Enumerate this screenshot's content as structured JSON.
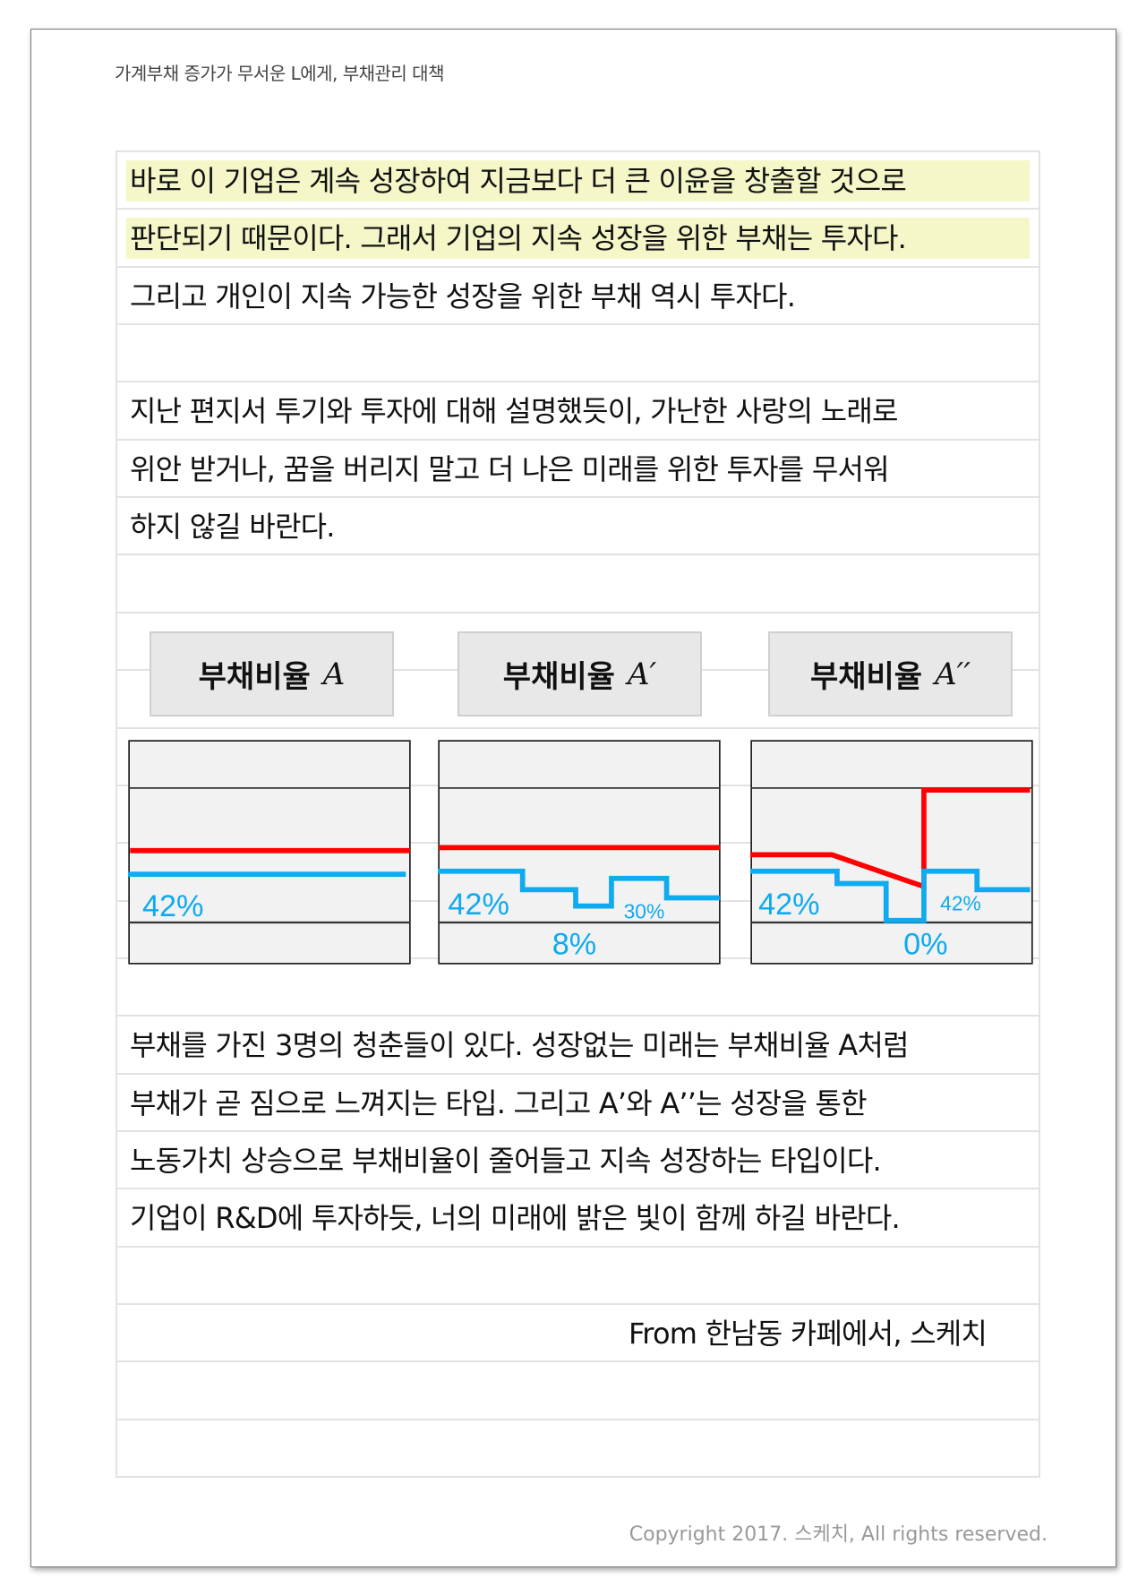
{
  "header": {
    "title": "가계부채 증가가 무서운 L에게, 부채관리 대책"
  },
  "rows": [
    {
      "text": "바로 이 기업은 계속 성장하여 지금보다 더 큰 이윤을 창출할 것으로",
      "style": "highlight"
    },
    {
      "text": "판단되기 때문이다. 그래서 기업의 지속 성장을 위한 부채는 투자다.",
      "style": "highlight"
    },
    {
      "text": "그리고 개인이 지속 가능한 성장을 위한 부채 역시 투자다.",
      "style": "normal"
    },
    {
      "text": "",
      "style": "normal"
    },
    {
      "text": "지난 편지서 투기와 투자에 대해 설명했듯이, 가난한 사랑의 노래로",
      "style": "normal"
    },
    {
      "text": "위안 받거나, 꿈을 버리지 말고 더 나은 미래를 위한 투자를 무서워",
      "style": "normal"
    },
    {
      "text": "하지 않길 바란다.",
      "style": "normal"
    },
    {
      "text": "",
      "style": "normal"
    },
    {
      "text": "",
      "style": "normal"
    },
    {
      "text": "",
      "style": "normal"
    },
    {
      "text": "",
      "style": "normal"
    },
    {
      "text": "",
      "style": "normal"
    },
    {
      "text": "",
      "style": "normal"
    },
    {
      "text": "",
      "style": "normal"
    },
    {
      "text": "",
      "style": "normal"
    },
    {
      "text": "부채를 가진 3명의 청춘들이 있다. 성장없는 미래는 부채비율 A처럼",
      "style": "normal"
    },
    {
      "text": "부채가 곧 짐으로 느껴지는 타입. 그리고 A’와 A’’는 성장을 통한",
      "style": "normal"
    },
    {
      "text": "노동가치 상승으로 부채비율이 줄어들고 지속 성장하는 타입이다.",
      "style": "normal"
    },
    {
      "text": "기업이 R&D에 투자하듯, 너의 미래에 밝은 빛이 함께 하길 바란다.",
      "style": "normal"
    },
    {
      "text": "",
      "style": "normal"
    },
    {
      "text": "From 한남동 카페에서, 스케치",
      "style": "signature"
    },
    {
      "text": "",
      "style": "normal"
    },
    {
      "text": "",
      "style": "normal"
    }
  ],
  "diagrams": [
    {
      "label": "부채비율",
      "symbol": "A",
      "blue_labels": [
        "42%"
      ]
    },
    {
      "label": "부채비율",
      "symbol": "A′",
      "blue_labels": [
        "42%",
        "30%",
        "8%"
      ]
    },
    {
      "label": "부채비율",
      "symbol": "A′′",
      "blue_labels": [
        "42%",
        "42%",
        "0%"
      ]
    }
  ],
  "colors": {
    "debt_line": "#ff0000",
    "ratio_line": "#10aaee",
    "highlight": "#f5f7c8",
    "panel": "#f2f2f2"
  },
  "footer": {
    "copyright": "Copyright 2017. 스케치, All rights reserved."
  }
}
